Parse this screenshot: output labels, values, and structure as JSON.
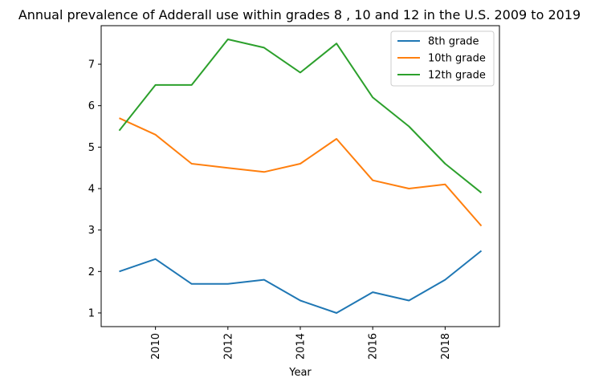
{
  "chart_data": {
    "type": "line",
    "title": "Annual prevalence of Adderall use within grades 8 , 10 and 12 in the U.S. 2009 to 2019",
    "xlabel": "Year",
    "ylabel": "",
    "x": [
      2009,
      2010,
      2011,
      2012,
      2013,
      2014,
      2015,
      2016,
      2017,
      2018,
      2019
    ],
    "xticks": [
      2010,
      2012,
      2014,
      2016,
      2018
    ],
    "yticks": [
      1,
      2,
      3,
      4,
      5,
      6,
      7
    ],
    "xlim": [
      2008.5,
      2019.5
    ],
    "ylim": [
      0.67,
      7.93
    ],
    "grid": false,
    "legend_position": "top-right",
    "series": [
      {
        "name": "8th grade",
        "color": "#1f77b4",
        "values": [
          2.0,
          2.3,
          1.7,
          1.7,
          1.8,
          1.3,
          1.0,
          1.5,
          1.3,
          1.8,
          2.5
        ]
      },
      {
        "name": "10th grade",
        "color": "#ff7f0e",
        "values": [
          5.7,
          5.3,
          4.6,
          4.5,
          4.4,
          4.6,
          5.2,
          4.2,
          4.0,
          4.1,
          3.1
        ]
      },
      {
        "name": "12th grade",
        "color": "#2ca02c",
        "values": [
          5.4,
          6.5,
          6.5,
          7.6,
          7.4,
          6.8,
          7.5,
          6.2,
          5.5,
          4.6,
          3.9
        ]
      }
    ]
  }
}
